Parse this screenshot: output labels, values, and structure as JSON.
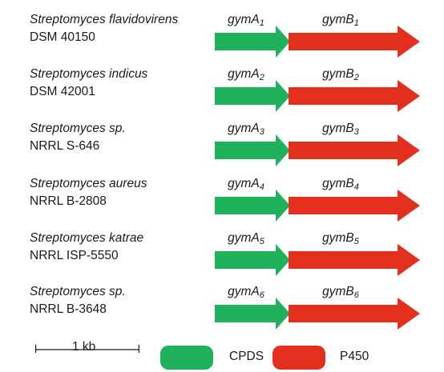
{
  "colors": {
    "cpds": "#1fb25a",
    "p450": "#e3301e",
    "text": "#1a1a1a"
  },
  "organisms": [
    {
      "species": "Streptomyces flavidovirens",
      "strain": "DSM 40150",
      "gene_a": {
        "name": "gymA",
        "sub": "1"
      },
      "gene_b": {
        "name": "gymB",
        "sub": "1"
      }
    },
    {
      "species": "Streptomyces indicus",
      "strain": "DSM 42001",
      "gene_a": {
        "name": "gymA",
        "sub": "2"
      },
      "gene_b": {
        "name": "gymB",
        "sub": "2"
      }
    },
    {
      "species": "Streptomyces sp.",
      "strain": "NRRL S-646",
      "gene_a": {
        "name": "gymA",
        "sub": "3"
      },
      "gene_b": {
        "name": "gymB",
        "sub": "3"
      }
    },
    {
      "species": "Streptomyces aureus",
      "strain": "NRRL B-2808",
      "gene_a": {
        "name": "gymA",
        "sub": "4"
      },
      "gene_b": {
        "name": "gymB",
        "sub": "4"
      }
    },
    {
      "species": "Streptomyces katrae",
      "strain": "NRRL ISP-5550",
      "gene_a": {
        "name": "gymA",
        "sub": "5"
      },
      "gene_b": {
        "name": "gymB",
        "sub": "5"
      }
    },
    {
      "species": "Streptomyces sp.",
      "strain": "NRRL B-3648",
      "gene_a": {
        "name": "gymA",
        "sub": "6"
      },
      "gene_b": {
        "name": "gymB",
        "sub": "6"
      }
    }
  ],
  "scale": {
    "label": "1 kb"
  },
  "legend": {
    "cpds": "CPDS",
    "p450": "P450"
  }
}
